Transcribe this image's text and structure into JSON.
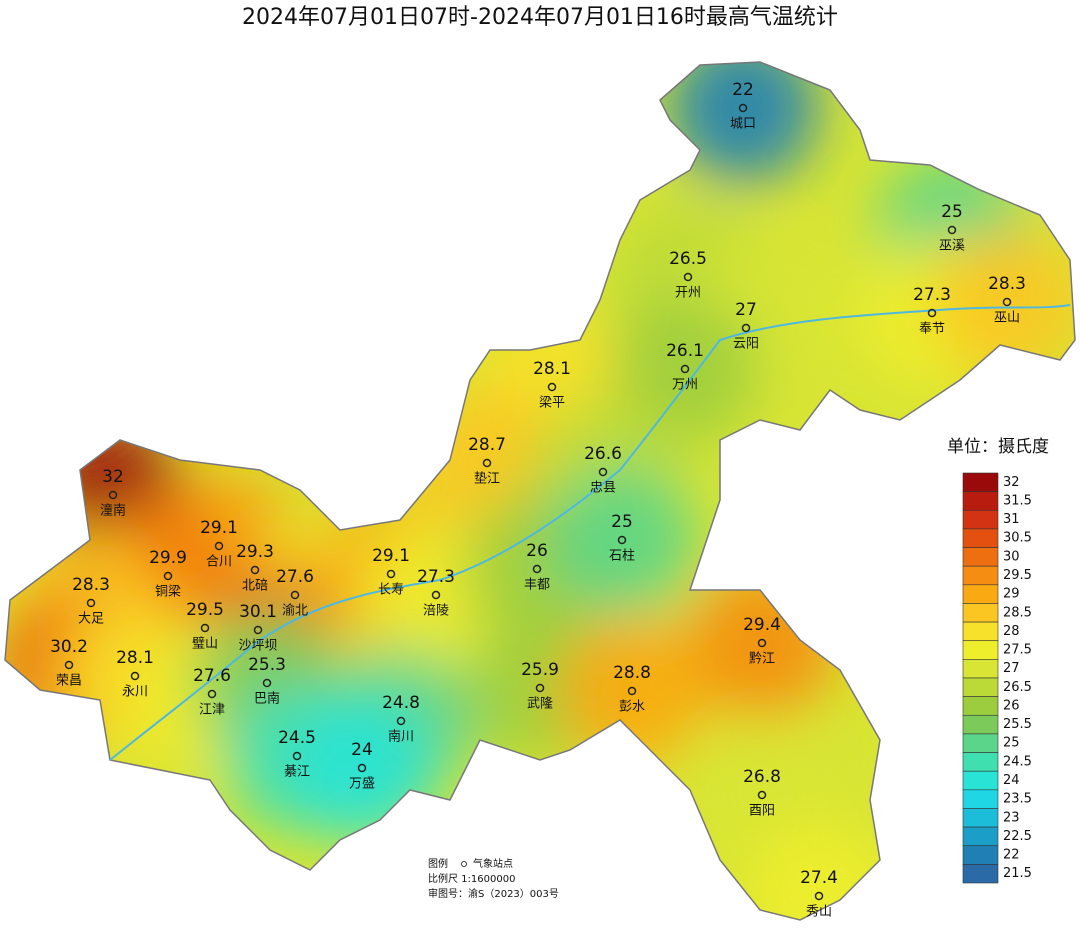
{
  "title": "2024年07月01日07时-2024年07月01日16时最高气温统计",
  "stations": [
    {
      "name": "城口",
      "value": 22
    },
    {
      "name": "巫溪",
      "value": 25
    },
    {
      "name": "开州",
      "value": 26.5
    },
    {
      "name": "云阳",
      "value": 27
    },
    {
      "name": "奉节",
      "value": 27.3
    },
    {
      "name": "巫山",
      "value": 28.3
    },
    {
      "name": "梁平",
      "value": 28.1
    },
    {
      "name": "万州",
      "value": 26.1
    },
    {
      "name": "垫江",
      "value": 28.7
    },
    {
      "name": "忠县",
      "value": 26.6
    },
    {
      "name": "潼南",
      "value": 32
    },
    {
      "name": "合川",
      "value": 29.1
    },
    {
      "name": "铜梁",
      "value": 29.9
    },
    {
      "name": "北碚",
      "value": 29.3
    },
    {
      "name": "渝北",
      "value": 27.6
    },
    {
      "name": "长寿",
      "value": 29.1
    },
    {
      "name": "涪陵",
      "value": 27.3
    },
    {
      "name": "丰都",
      "value": 26
    },
    {
      "name": "石柱",
      "value": 25
    },
    {
      "name": "大足",
      "value": 28.3
    },
    {
      "name": "璧山",
      "value": 29.5
    },
    {
      "name": "沙坪坝",
      "value": 30.1
    },
    {
      "name": "荣昌",
      "value": 30.2
    },
    {
      "name": "永川",
      "value": 28.1
    },
    {
      "name": "黔江",
      "value": 29.4
    },
    {
      "name": "江津",
      "value": 27.6
    },
    {
      "name": "巴南",
      "value": 25.3
    },
    {
      "name": "武隆",
      "value": 25.9
    },
    {
      "name": "彭水",
      "value": 28.8
    },
    {
      "name": "南川",
      "value": 24.8
    },
    {
      "name": "綦江",
      "value": 24.5
    },
    {
      "name": "万盛",
      "value": 24
    },
    {
      "name": "酉阳",
      "value": 26.8
    },
    {
      "name": "秀山",
      "value": 27.4
    }
  ],
  "legend": {
    "title": "单位：摄氏度",
    "levels": [
      32,
      31.5,
      31,
      30.5,
      30,
      29.5,
      29,
      28.5,
      28,
      27.5,
      27,
      26.5,
      26,
      25.5,
      25,
      24.5,
      24,
      23.5,
      23,
      22.5,
      22,
      21.5
    ],
    "colors": [
      "#9b0a0a",
      "#b81c0e",
      "#d33312",
      "#e4500f",
      "#ee6f10",
      "#f58d12",
      "#f9a912",
      "#fbc621",
      "#f8e12a",
      "#eeee2c",
      "#d8e534",
      "#bcda37",
      "#9ccd3e",
      "#7ccb5a",
      "#5bd58a",
      "#3fdfb0",
      "#28e3d6",
      "#1ed6e4",
      "#1bbdd8",
      "#1b9fc8",
      "#2080b5",
      "#2a6aa6"
    ]
  },
  "footer": {
    "legend_label": "图例",
    "station_label": "气象站点",
    "scale": "比例尺   1:1600000",
    "approval": "审图号：渝S（2023）003号"
  }
}
